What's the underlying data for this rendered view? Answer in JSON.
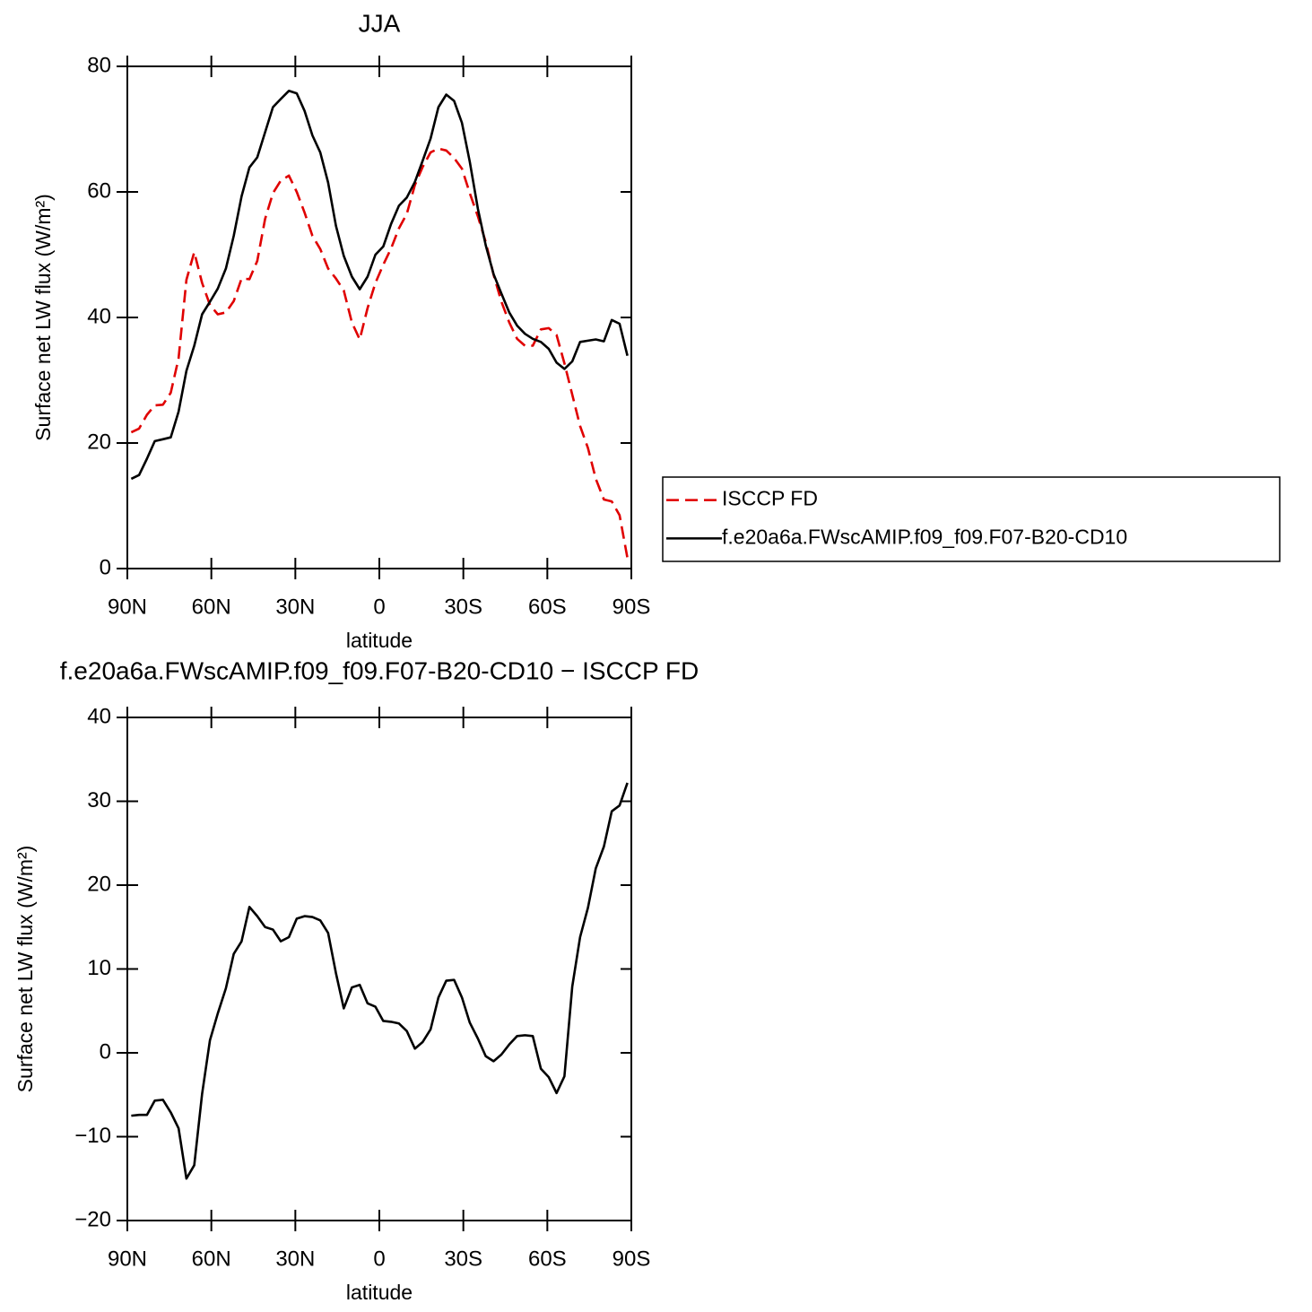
{
  "chart_data": [
    {
      "type": "line",
      "title": "JJA",
      "x_label": "latitude",
      "y_label": "Surface net LW flux (W/m²)",
      "x": [
        88.6,
        85.8,
        83.0,
        80.2,
        77.3,
        74.5,
        71.7,
        68.9,
        66.1,
        63.3,
        60.5,
        57.7,
        54.8,
        52.0,
        49.2,
        46.4,
        43.6,
        40.8,
        38.0,
        35.2,
        32.3,
        29.5,
        26.7,
        23.9,
        21.1,
        18.3,
        15.5,
        12.7,
        9.8,
        7.0,
        4.2,
        1.4,
        -1.4,
        -4.2,
        -7.0,
        -9.8,
        -12.7,
        -15.5,
        -18.3,
        -21.1,
        -23.9,
        -26.7,
        -29.5,
        -32.3,
        -35.2,
        -38.0,
        -40.8,
        -43.6,
        -46.4,
        -49.2,
        -52.0,
        -54.8,
        -57.7,
        -60.5,
        -63.3,
        -66.1,
        -68.9,
        -71.7,
        -74.5,
        -77.3,
        -80.2,
        -83.0,
        -85.8,
        -88.6
      ],
      "series": [
        {
          "name": "ISCCP FD",
          "color": "#e00000",
          "dashed": true,
          "values": [
            21.7,
            22.3,
            24.5,
            26,
            26.1,
            28,
            33.5,
            46,
            50.4,
            45.5,
            42,
            40.5,
            40.8,
            42.6,
            46.2,
            46.1,
            49,
            55.7,
            59.8,
            61.8,
            62.6,
            60,
            56.7,
            53,
            50.9,
            47.8,
            46.2,
            44.3,
            39.2,
            36.5,
            41.5,
            45.5,
            48.4,
            51,
            54.2,
            56.5,
            61.1,
            64,
            66.3,
            66.9,
            66.6,
            65.4,
            63.7,
            59.8,
            56.1,
            52,
            46.8,
            42.5,
            39.2,
            36.6,
            35.5,
            35.5,
            38.1,
            38.3,
            37.2,
            32.7,
            27.7,
            22.7,
            19.2,
            14.3,
            11,
            10.7,
            8.5,
            1.7
          ]
        },
        {
          "name": "f.e20a6a.FWscAMIP.f09_f09.F07-B20-CD10",
          "color": "#000000",
          "dashed": false,
          "values": [
            14.3,
            14.9,
            17.5,
            20.3,
            20.6,
            20.9,
            25,
            31.5,
            35.5,
            40.5,
            42.5,
            44.6,
            47.8,
            53,
            59.3,
            63.9,
            65.5,
            69.5,
            73.5,
            74.8,
            76.1,
            75.7,
            72.9,
            69,
            66.3,
            61.5,
            54.6,
            49.8,
            46.5,
            44.5,
            46.5,
            50,
            51.3,
            54.9,
            57.8,
            59.1,
            61.6,
            65,
            68.5,
            73.5,
            75.5,
            74.5,
            71,
            64.8,
            57.3,
            51.5,
            46.9,
            43.8,
            40.8,
            38.7,
            37.4,
            36.6,
            36.1,
            35,
            32.8,
            31.8,
            33,
            36.1,
            36.3,
            36.5,
            36.2,
            39.6,
            39,
            33.9
          ]
        }
      ],
      "xlim": [
        90,
        -90
      ],
      "xticks": [
        {
          "value": 90,
          "label": "90N"
        },
        {
          "value": 60,
          "label": "60N"
        },
        {
          "value": 30,
          "label": "30N"
        },
        0,
        {
          "value": -30,
          "label": "30S"
        },
        {
          "value": -60,
          "label": "60S"
        },
        {
          "value": -90,
          "label": "90S"
        }
      ],
      "ylim": [
        0,
        80
      ],
      "yticks": [
        0,
        20,
        40,
        60,
        80
      ],
      "legend": "right",
      "grid": false
    },
    {
      "type": "line",
      "title": "f.e20a6a.FWscAMIP.f09_f09.F07-B20-CD10 − ISCCP FD",
      "x_label": "latitude",
      "y_label": "Surface net LW flux (W/m²)",
      "x": [
        88.6,
        85.8,
        83.0,
        80.2,
        77.3,
        74.5,
        71.7,
        68.9,
        66.1,
        63.3,
        60.5,
        57.7,
        54.8,
        52.0,
        49.2,
        46.4,
        43.6,
        40.8,
        38.0,
        35.2,
        32.3,
        29.5,
        26.7,
        23.9,
        21.1,
        18.3,
        15.5,
        12.7,
        9.8,
        7.0,
        4.2,
        1.4,
        -1.4,
        -4.2,
        -7.0,
        -9.8,
        -12.7,
        -15.5,
        -18.3,
        -21.1,
        -23.9,
        -26.7,
        -29.5,
        -32.3,
        -35.2,
        -38.0,
        -40.8,
        -43.6,
        -46.4,
        -49.2,
        -52.0,
        -54.8,
        -57.7,
        -60.5,
        -63.3,
        -66.1,
        -68.9,
        -71.7,
        -74.5,
        -77.3,
        -80.2,
        -83.0,
        -85.8,
        -88.6
      ],
      "color": "#000000",
      "values": [
        -7.5,
        -7.4,
        -7.4,
        -5.7,
        -5.6,
        -7.1,
        -9.0,
        -15.0,
        -13.4,
        -4.9,
        1.5,
        4.7,
        7.7,
        11.8,
        13.3,
        17.4,
        16.3,
        15.0,
        14.7,
        13.3,
        13.8,
        16.0,
        16.3,
        16.2,
        15.8,
        14.3,
        9.5,
        5.3,
        7.8,
        8.1,
        5.9,
        5.5,
        3.8,
        3.7,
        3.5,
        2.6,
        0.5,
        1.3,
        2.8,
        6.6,
        8.6,
        8.7,
        6.6,
        3.6,
        1.7,
        -0.4,
        -1.0,
        -0.2,
        1.0,
        2.0,
        2.1,
        2.0,
        -1.9,
        -2.9,
        -4.8,
        -2.8,
        7.9,
        13.8,
        17.3,
        22.0,
        24.6,
        28.8,
        29.5,
        32.2
      ],
      "xlim": [
        90,
        -90
      ],
      "xticks": [
        {
          "value": 90,
          "label": "90N"
        },
        {
          "value": 60,
          "label": "60N"
        },
        {
          "value": 30,
          "label": "30N"
        },
        0,
        {
          "value": -30,
          "label": "30S"
        },
        {
          "value": -60,
          "label": "60S"
        },
        {
          "value": -90,
          "label": "90S"
        }
      ],
      "ylim": [
        -20,
        40
      ],
      "yticks": [
        {
          "value": -20,
          "label": "−20"
        },
        {
          "value": -10,
          "label": "−10"
        },
        0,
        10,
        20,
        30,
        40
      ],
      "grid": false
    }
  ]
}
